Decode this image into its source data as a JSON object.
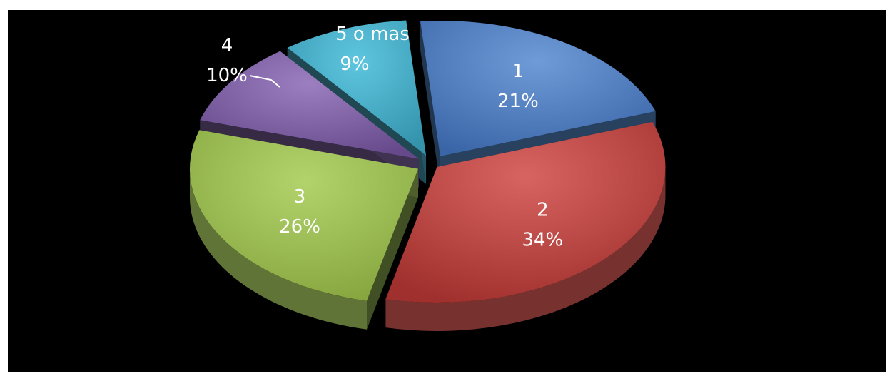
{
  "chart_data": {
    "type": "pie",
    "style": "3d-exploded",
    "background": "#000000",
    "title": "",
    "slices": [
      {
        "category": "1",
        "value": 21,
        "percent_label": "21%",
        "color": "#4F81BD"
      },
      {
        "category": "2",
        "value": 34,
        "percent_label": "34%",
        "color": "#C0504D"
      },
      {
        "category": "3",
        "value": 26,
        "percent_label": "26%",
        "color": "#9BBB59"
      },
      {
        "category": "4",
        "value": 10,
        "percent_label": "10%",
        "color": "#8064A2"
      },
      {
        "category": "5 o mas",
        "value": 9,
        "percent_label": "9%",
        "color": "#4BACC6"
      }
    ]
  }
}
